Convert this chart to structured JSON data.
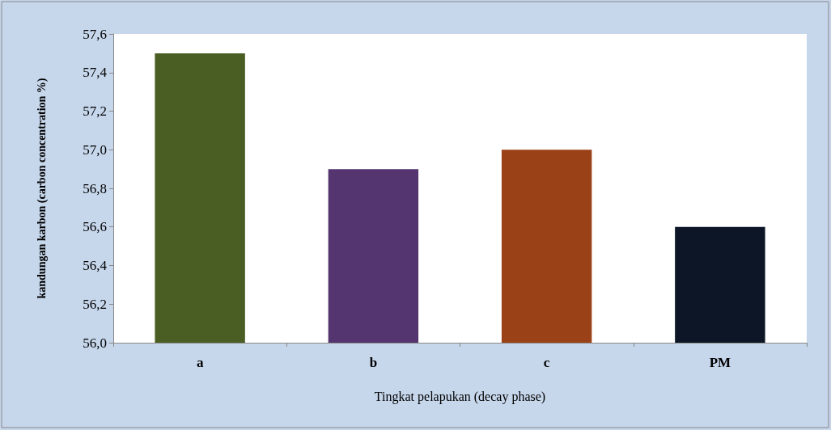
{
  "chart_data": {
    "type": "bar",
    "xlabel": "Tingkat pelapukan (decay phase)",
    "ylabel": "kandungan karbon (carbon concentration %)",
    "categories": [
      "a",
      "b",
      "c",
      "PM"
    ],
    "values": [
      57.5,
      56.9,
      57.0,
      56.6
    ],
    "colors": [
      "#4a5e23",
      "#553570",
      "#9b4117",
      "#0c1626"
    ],
    "ylim": [
      56.0,
      57.6
    ],
    "yticks": [
      {
        "value": 56.0,
        "label": "56,0"
      },
      {
        "value": 56.2,
        "label": "56,2"
      },
      {
        "value": 56.4,
        "label": "56,4"
      },
      {
        "value": 56.6,
        "label": "56,6"
      },
      {
        "value": 56.8,
        "label": "56,8"
      },
      {
        "value": 57.0,
        "label": "57,0"
      },
      {
        "value": 57.2,
        "label": "57,2"
      },
      {
        "value": 57.4,
        "label": "57,4"
      },
      {
        "value": 57.6,
        "label": "57,6"
      }
    ],
    "grid": false
  }
}
